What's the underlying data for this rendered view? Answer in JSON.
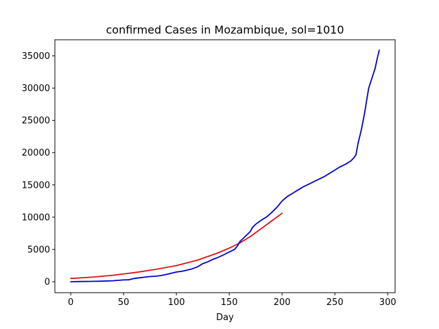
{
  "chart_data": {
    "type": "line",
    "title": "confirmed Cases in Mozambique, sol=1010",
    "xlabel": "Day",
    "ylabel": "",
    "xlim": [
      -15,
      307
    ],
    "ylim": [
      -1700,
      37500
    ],
    "xticks": [
      0,
      50,
      100,
      150,
      200,
      250,
      300
    ],
    "yticks": [
      0,
      5000,
      10000,
      15000,
      20000,
      25000,
      30000,
      35000
    ],
    "grid": false,
    "series": [
      {
        "color": "#dd1111",
        "x": [
          0,
          20,
          40,
          60,
          80,
          100,
          120,
          140,
          150,
          160,
          170,
          180,
          190,
          200
        ],
        "y": [
          500,
          700,
          1000,
          1400,
          1900,
          2500,
          3350,
          4500,
          5200,
          6000,
          7000,
          8200,
          9400,
          10600
        ]
      },
      {
        "color": "#0000cc",
        "x": [
          0,
          10,
          20,
          30,
          40,
          50,
          55,
          60,
          65,
          70,
          75,
          80,
          85,
          90,
          95,
          100,
          105,
          110,
          115,
          120,
          125,
          130,
          135,
          140,
          145,
          150,
          155,
          158,
          160,
          165,
          170,
          172,
          175,
          180,
          185,
          190,
          195,
          200,
          205,
          210,
          215,
          220,
          225,
          230,
          235,
          240,
          245,
          250,
          255,
          260,
          262,
          265,
          268,
          270,
          272,
          275,
          278,
          280,
          282,
          285,
          288,
          290,
          292
        ],
        "y": [
          0,
          30,
          50,
          80,
          150,
          280,
          300,
          500,
          600,
          700,
          800,
          850,
          950,
          1100,
          1300,
          1500,
          1600,
          1800,
          2000,
          2300,
          2800,
          3100,
          3500,
          3800,
          4200,
          4600,
          5000,
          5600,
          6200,
          7000,
          7800,
          8400,
          8900,
          9500,
          10000,
          10700,
          11500,
          12500,
          13200,
          13700,
          14200,
          14700,
          15100,
          15500,
          15900,
          16300,
          16800,
          17300,
          17800,
          18200,
          18400,
          18700,
          19200,
          19700,
          21500,
          23500,
          26000,
          28000,
          30000,
          31500,
          33000,
          34500,
          35900
        ]
      }
    ]
  }
}
